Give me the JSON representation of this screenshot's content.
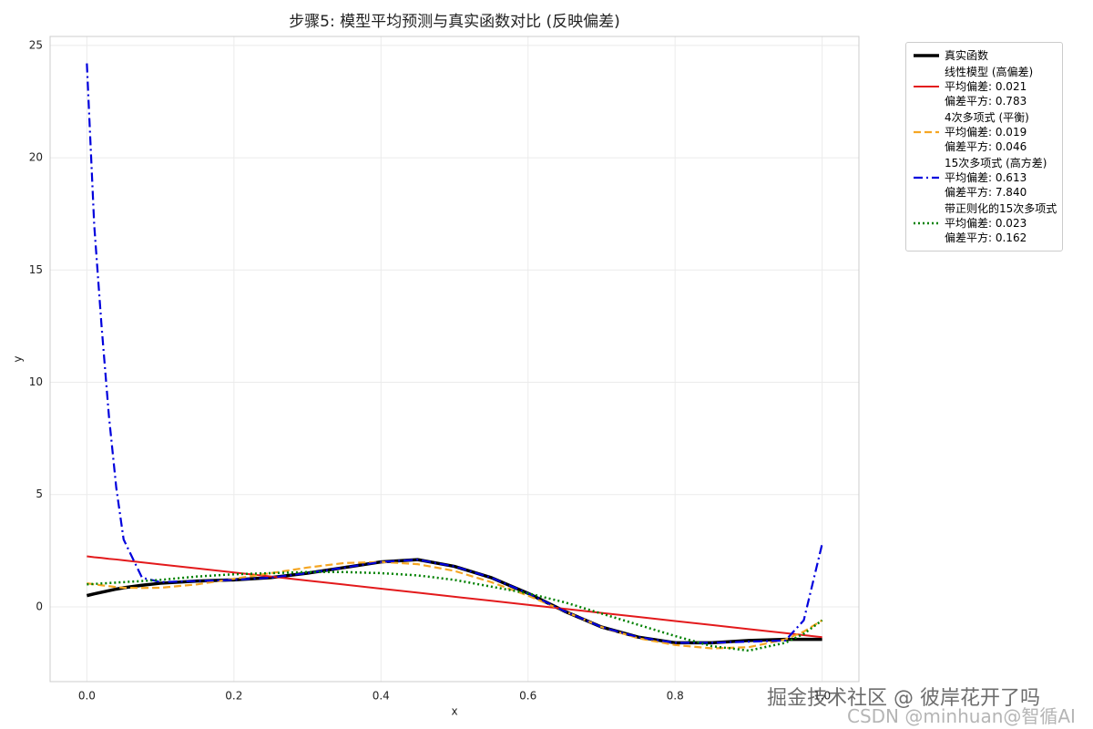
{
  "chart_data": {
    "type": "line",
    "title": "步骤5: 模型平均预测与真实函数对比 (反映偏差)",
    "x_label": "x",
    "y_label": "y",
    "x": [
      0,
      0.01,
      0.02,
      0.03,
      0.04,
      0.05,
      0.075,
      0.1,
      0.15,
      0.2,
      0.25,
      0.3,
      0.35,
      0.4,
      0.45,
      0.5,
      0.55,
      0.6,
      0.65,
      0.7,
      0.75,
      0.8,
      0.85,
      0.9,
      0.95,
      0.975,
      1.0
    ],
    "series": [
      {
        "name": "真实函数",
        "color": "#000000",
        "dash": "solid",
        "width": 3.5,
        "values": [
          0.5,
          0.58,
          0.65,
          0.72,
          0.79,
          0.85,
          0.96,
          1.05,
          1.15,
          1.2,
          1.3,
          1.5,
          1.75,
          2.0,
          2.1,
          1.8,
          1.3,
          0.6,
          -0.2,
          -0.9,
          -1.35,
          -1.6,
          -1.6,
          -1.5,
          -1.45,
          -1.45,
          -1.45
        ]
      },
      {
        "name": "线性模型 (高偏差)\n平均偏差: 0.021\n偏差平方: 0.783",
        "color": "#e31a1c",
        "dash": "solid",
        "width": 2,
        "values": [
          2.25,
          2.21,
          2.18,
          2.14,
          2.11,
          2.07,
          1.98,
          1.89,
          1.71,
          1.53,
          1.35,
          1.17,
          0.99,
          0.81,
          0.63,
          0.45,
          0.27,
          0.09,
          -0.09,
          -0.27,
          -0.45,
          -0.63,
          -0.81,
          -0.99,
          -1.17,
          -1.26,
          -1.35
        ]
      },
      {
        "name": "4次多项式 (平衡)\n平均偏差: 0.019\n偏差平方: 0.046",
        "color": "#f5a623",
        "dash": "dashed",
        "width": 2.2,
        "values": [
          1.05,
          1.0,
          0.96,
          0.92,
          0.88,
          0.85,
          0.84,
          0.85,
          1.0,
          1.25,
          1.5,
          1.75,
          1.95,
          2.0,
          1.9,
          1.6,
          1.1,
          0.5,
          -0.2,
          -0.9,
          -1.4,
          -1.7,
          -1.85,
          -1.8,
          -1.45,
          -1.1,
          -0.6
        ]
      },
      {
        "name": "15次多项式 (高方差)\n平均偏差: 0.613\n偏差平方: 7.840",
        "color": "#0000dd",
        "dash": "dashdot",
        "width": 2.2,
        "values": [
          24.2,
          17,
          12.5,
          8.5,
          5.3,
          3.0,
          1.3,
          1.1,
          1.15,
          1.2,
          1.3,
          1.5,
          1.75,
          2.0,
          2.1,
          1.8,
          1.3,
          0.6,
          -0.2,
          -0.9,
          -1.35,
          -1.6,
          -1.6,
          -1.55,
          -1.5,
          -0.6,
          2.8
        ]
      },
      {
        "name": "带正则化的15次多项式\n平均偏差: 0.023\n偏差平方: 0.162",
        "color": "#008000",
        "dash": "dotted",
        "width": 2.5,
        "values": [
          1.0,
          1.02,
          1.04,
          1.06,
          1.08,
          1.1,
          1.15,
          1.2,
          1.35,
          1.45,
          1.5,
          1.55,
          1.55,
          1.5,
          1.4,
          1.2,
          0.9,
          0.6,
          0.2,
          -0.3,
          -0.8,
          -1.3,
          -1.75,
          -1.95,
          -1.6,
          -1.2,
          -0.6
        ]
      }
    ],
    "xlim": [
      -0.05,
      1.05
    ],
    "ylim": [
      -3.33,
      25.4
    ],
    "xticks": [
      {
        "value": 0,
        "label": "0.0"
      },
      {
        "value": 0.2,
        "label": "0.2"
      },
      {
        "value": 0.4,
        "label": "0.4"
      },
      {
        "value": 0.6,
        "label": "0.6"
      },
      {
        "value": 0.8,
        "label": "0.8"
      },
      {
        "value": 1.0,
        "label": "1.0"
      }
    ],
    "yticks": [
      0,
      5,
      10,
      15,
      20,
      25
    ],
    "grid": true,
    "legend": "outside-upper-right"
  },
  "watermarks": [
    "掘金技术社区 @ 彼岸花开了吗",
    "CSDN @minhuan@智循AI"
  ]
}
